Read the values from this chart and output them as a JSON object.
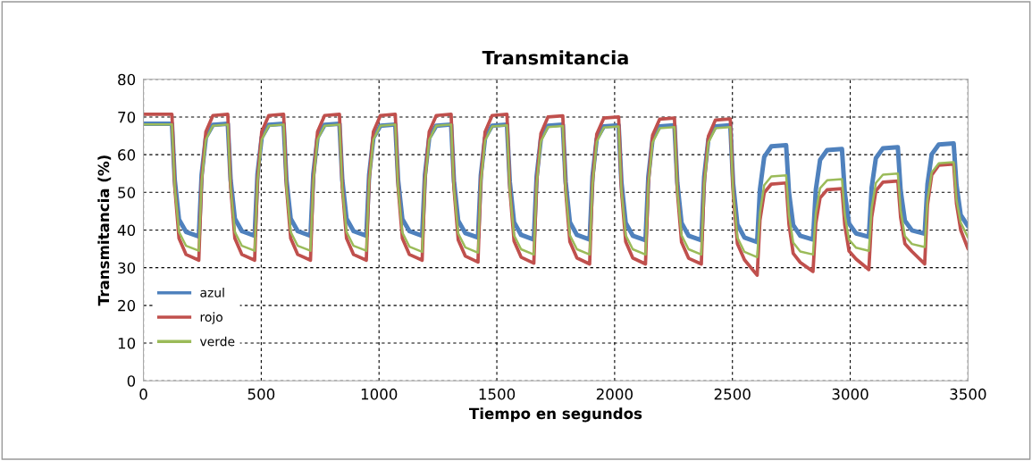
{
  "chart_data": {
    "type": "line",
    "title": "Transmitancia",
    "xlabel": "Tiempo en segundos",
    "ylabel": "Transmitancia (%)",
    "x": [
      0,
      121,
      133,
      151,
      181,
      235,
      247,
      265,
      295,
      358,
      370,
      388,
      418,
      472,
      484,
      502,
      532,
      595,
      607,
      625,
      655,
      709,
      721,
      739,
      769,
      832,
      844,
      862,
      892,
      946,
      958,
      976,
      1006,
      1069,
      1081,
      1099,
      1129,
      1183,
      1195,
      1213,
      1243,
      1306,
      1318,
      1336,
      1366,
      1420,
      1432,
      1450,
      1480,
      1543,
      1555,
      1573,
      1603,
      1657,
      1669,
      1687,
      1717,
      1780,
      1792,
      1810,
      1840,
      1894,
      1906,
      1924,
      1954,
      2017,
      2029,
      2047,
      2077,
      2131,
      2143,
      2161,
      2191,
      2254,
      2266,
      2284,
      2314,
      2368,
      2380,
      2398,
      2428,
      2491,
      2503,
      2521,
      2551,
      2605,
      2617,
      2635,
      2665,
      2728,
      2740,
      2758,
      2788,
      2842,
      2854,
      2872,
      2902,
      2965,
      2977,
      2995,
      3025,
      3079,
      3091,
      3109,
      3139,
      3202,
      3214,
      3232,
      3262,
      3316,
      3328,
      3346,
      3376,
      3439,
      3451,
      3469,
      3500
    ],
    "series": [
      {
        "name": "azul",
        "color": "#4f81bd",
        "values": [
          68.2,
          68.2,
          53.2,
          42.8,
          39.5,
          38.3,
          54.7,
          64.6,
          67.9,
          68.2,
          53.3,
          43.0,
          39.7,
          38.5,
          54.8,
          64.6,
          67.9,
          68.2,
          53.3,
          43.0,
          39.7,
          38.5,
          54.8,
          64.6,
          67.9,
          68.2,
          53.3,
          43.0,
          39.7,
          38.5,
          54.7,
          64.5,
          67.7,
          68,
          53.2,
          42.9,
          39.7,
          38.5,
          54.7,
          64.5,
          67.7,
          68,
          53,
          42.5,
          39.2,
          38,
          54.5,
          64.4,
          67.7,
          68,
          52.8,
          42.1,
          38.7,
          37.5,
          54.3,
          64.3,
          67.7,
          68,
          52.8,
          42.1,
          38.7,
          37.5,
          54.2,
          64.2,
          67.5,
          67.8,
          52.6,
          41.9,
          38.5,
          37.3,
          54.1,
          64.1,
          67.5,
          67.8,
          52.6,
          41.9,
          38.5,
          37.3,
          54.1,
          64.1,
          67.5,
          67.8,
          52.3,
          41.5,
          38.0,
          36.8,
          50.9,
          59.4,
          62.2,
          62.5,
          50,
          41.3,
          38.5,
          37.5,
          50.7,
          58.6,
          61.2,
          61.5,
          49.9,
          41.7,
          39.1,
          38.2,
          51.3,
          59.1,
          61.7,
          62,
          50.5,
          42.5,
          39.9,
          39,
          52.2,
          60.1,
          62.7,
          63,
          52,
          44,
          41
        ]
      },
      {
        "name": "rojo",
        "color": "#c0504d",
        "values": [
          70.7,
          70.7,
          51.4,
          37.8,
          33.5,
          32,
          53.3,
          66.1,
          70.4,
          70.7,
          51.4,
          37.8,
          33.5,
          32,
          53.3,
          66.1,
          70.4,
          70.7,
          51.4,
          37.8,
          33.5,
          32,
          53.3,
          66.1,
          70.4,
          70.7,
          51.4,
          37.8,
          33.5,
          32,
          53.3,
          66.1,
          70.4,
          70.7,
          51.4,
          37.8,
          33.5,
          32,
          53.3,
          66.1,
          70.4,
          70.7,
          51.1,
          37.4,
          33.1,
          31.5,
          53.1,
          66,
          70.4,
          70.7,
          51,
          37.1,
          32.8,
          31.2,
          52.7,
          65.6,
          70,
          70.3,
          50.7,
          36.9,
          32.6,
          31,
          52.5,
          65.4,
          69.7,
          70,
          50.5,
          36.9,
          32.6,
          31,
          52.3,
          65.1,
          69.4,
          69.7,
          50.4,
          36.8,
          32.5,
          31,
          52.2,
          64.9,
          69.2,
          69.5,
          50,
          36.4,
          32.1,
          28,
          42.6,
          49.9,
          52.2,
          52.5,
          41.5,
          33.8,
          31.4,
          29,
          41.8,
          48.5,
          50.7,
          51,
          41.3,
          34.4,
          32.3,
          29.5,
          43.3,
          50.4,
          52.7,
          53,
          43.3,
          36.4,
          34.3,
          31,
          46.7,
          54.6,
          57.2,
          57.5,
          47,
          40,
          35
        ]
      },
      {
        "name": "verde",
        "color": "#9bbb59",
        "values": [
          68,
          68,
          51.3,
          39.5,
          35.8,
          34.5,
          52.9,
          64,
          67.7,
          68,
          51.3,
          39.5,
          35.8,
          34.5,
          52.9,
          64,
          67.7,
          68,
          51.3,
          39.5,
          35.8,
          34.5,
          52.9,
          64,
          67.7,
          68,
          51.3,
          39.5,
          35.8,
          34.5,
          52.9,
          64,
          67.7,
          68,
          51.1,
          39.3,
          35.6,
          34.2,
          52.8,
          63.9,
          67.7,
          68,
          51,
          39.1,
          35.4,
          34,
          52.6,
          63.7,
          67.5,
          67.8,
          50.7,
          38.6,
          34.9,
          33.5,
          52.3,
          63.5,
          67.3,
          67.6,
          50.6,
          38.6,
          34.9,
          33.5,
          52.2,
          63.4,
          67.2,
          67.5,
          50.5,
          38.6,
          34.9,
          33.5,
          52.1,
          63.2,
          67,
          67.3,
          50.4,
          38.6,
          34.9,
          33.5,
          52.1,
          63.2,
          67,
          67.3,
          50.1,
          38,
          34.2,
          32.8,
          44.7,
          51.9,
          54.2,
          54.5,
          44,
          36.7,
          34.3,
          33.5,
          44.5,
          51.1,
          53.2,
          53.5,
          44,
          37.4,
          35.3,
          34.5,
          45.8,
          52.5,
          54.7,
          55,
          45.3,
          38.4,
          36.3,
          35.5,
          47.9,
          55.3,
          57.7,
          58,
          48,
          42,
          38
        ]
      }
    ],
    "xlim": [
      0,
      3500
    ],
    "xticks": [
      0,
      500,
      1000,
      1500,
      2000,
      2500,
      3000,
      3500
    ],
    "ylim": [
      0,
      80
    ],
    "yticks": [
      0,
      10,
      20,
      30,
      40,
      50,
      60,
      70,
      80
    ],
    "grid": true,
    "legend": "lower left",
    "marker": "none",
    "line_style": "solid"
  }
}
